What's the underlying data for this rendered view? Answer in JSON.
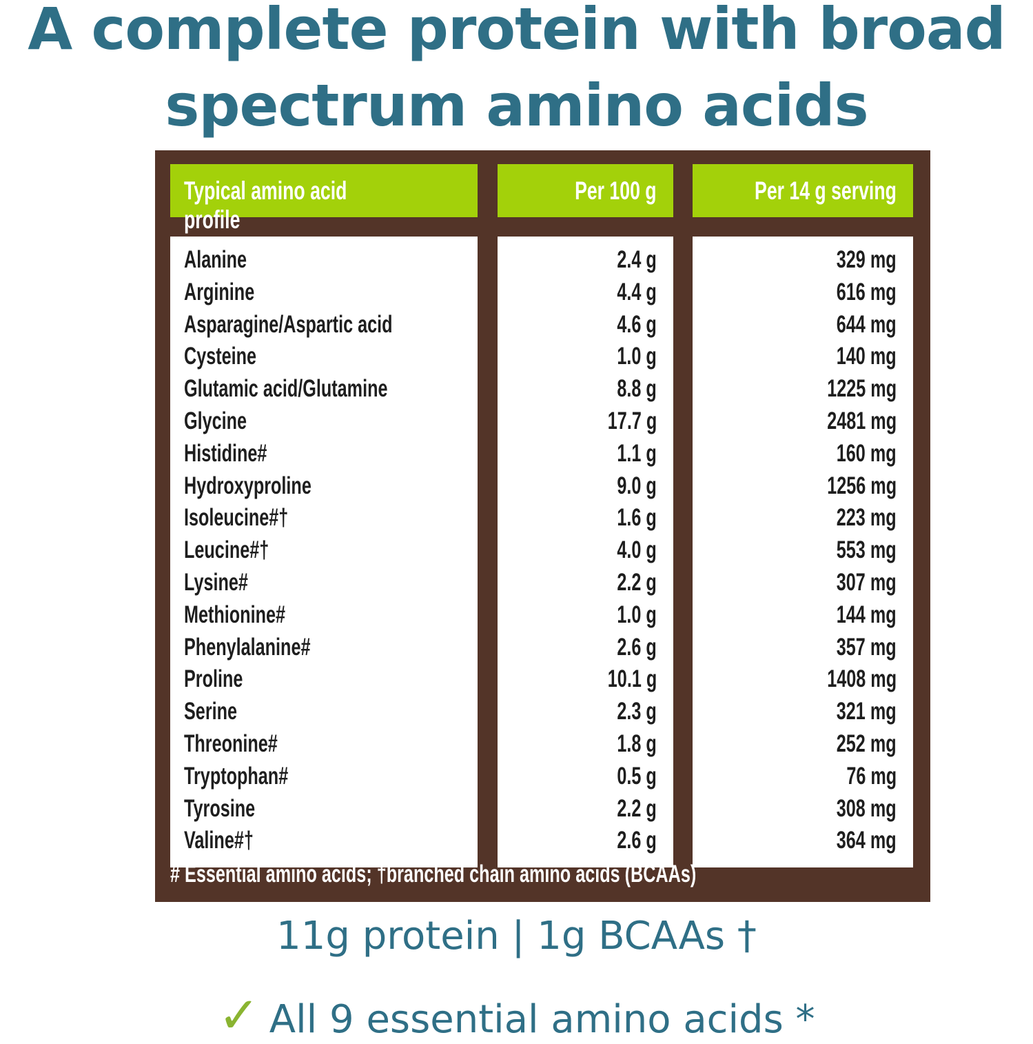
{
  "title": {
    "line1": "A complete protein with broad",
    "line2": "spectrum amino acids"
  },
  "colors": {
    "title": "#2f6f86",
    "frame": "#533428",
    "header": "#a3d10a",
    "check": "#8ab431"
  },
  "table": {
    "headers": [
      "Typical amino acid profile",
      "Per 100 g",
      "Per 14 g serving"
    ],
    "rows": [
      [
        "Alanine",
        "2.4 g",
        "329 mg"
      ],
      [
        "Arginine",
        "4.4 g",
        "616 mg"
      ],
      [
        "Asparagine/Aspartic acid",
        "4.6 g",
        "644 mg"
      ],
      [
        "Cysteine",
        "1.0 g",
        "140 mg"
      ],
      [
        "Glutamic acid/Glutamine",
        "8.8 g",
        "1225 mg"
      ],
      [
        "Glycine",
        "17.7 g",
        "2481 mg"
      ],
      [
        "Histidine#",
        "1.1 g",
        "160 mg"
      ],
      [
        "Hydroxyproline",
        "9.0 g",
        "1256 mg"
      ],
      [
        "Isoleucine#†",
        "1.6 g",
        "223 mg"
      ],
      [
        "Leucine#†",
        "4.0 g",
        "553 mg"
      ],
      [
        "Lysine#",
        "2.2 g",
        "307 mg"
      ],
      [
        "Methionine#",
        "1.0 g",
        "144 mg"
      ],
      [
        "Phenylalanine#",
        "2.6 g",
        "357 mg"
      ],
      [
        "Proline",
        "10.1 g",
        "1408 mg"
      ],
      [
        "Serine",
        "2.3 g",
        "321 mg"
      ],
      [
        "Threonine#",
        "1.8 g",
        "252 mg"
      ],
      [
        "Tryptophan#",
        "0.5 g",
        "76 mg"
      ],
      [
        "Tyrosine",
        "2.2 g",
        "308 mg"
      ],
      [
        "Valine#†",
        "2.6 g",
        "364 mg"
      ]
    ],
    "footnote": "# Essential amino acids; †branched chain amino acids (BCAAs)"
  },
  "summary": {
    "line1": "11g protein | 1g BCAAs †",
    "check_icon": "✓",
    "line2": "All 9 essential amino acids *"
  }
}
